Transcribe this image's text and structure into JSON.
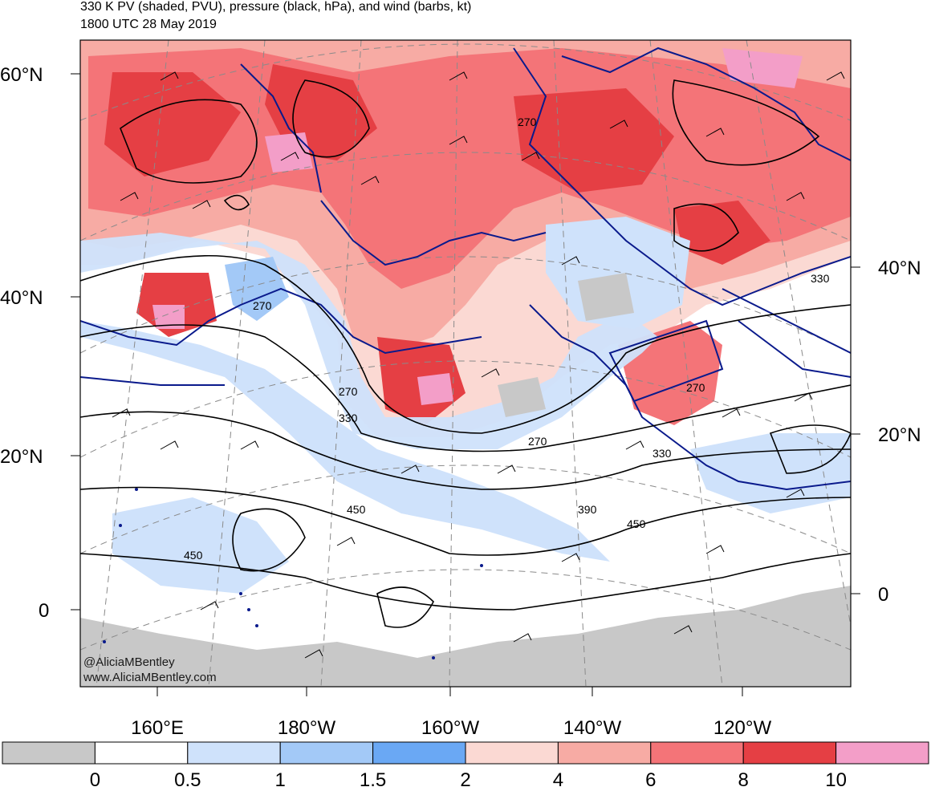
{
  "title": {
    "line1": "330 K PV (shaded, PVU), pressure (black, hPa), and wind (barbs, kt)",
    "line2": "1800 UTC 28 May 2019"
  },
  "lat_labels_left": [
    "60°N",
    "40°N",
    "20°N",
    "0"
  ],
  "lat_labels_right": [
    "40°N",
    "20°N",
    "0"
  ],
  "lon_labels": [
    "160°E",
    "180°W",
    "160°W",
    "140°W",
    "120°W"
  ],
  "contour_labels": [
    "270",
    "270",
    "270",
    "270",
    "270",
    "330",
    "330",
    "330",
    "390",
    "450",
    "450",
    "450"
  ],
  "credits": {
    "handle": "@AliciaMBentley",
    "website": "www.AliciaMBentley.com"
  },
  "colorbar": {
    "colors": [
      "#c8c8c8",
      "#ffffff",
      "#cfe2fb",
      "#a3c9f7",
      "#6aa8f4",
      "#fbd9d3",
      "#f7aba4",
      "#f47478",
      "#e53f44",
      "#f39ec8"
    ],
    "tick_labels": [
      "0",
      "0.5",
      "1",
      "1.5",
      "2",
      "4",
      "6",
      "8",
      "10"
    ]
  },
  "colors": {
    "pv_high": "#e53f44",
    "pv_mid": "#f47478",
    "pv_low": "#f7aba4",
    "pv_blue": "#cfe2fb",
    "coastline": "#0a1a8c",
    "contour": "#000000"
  }
}
